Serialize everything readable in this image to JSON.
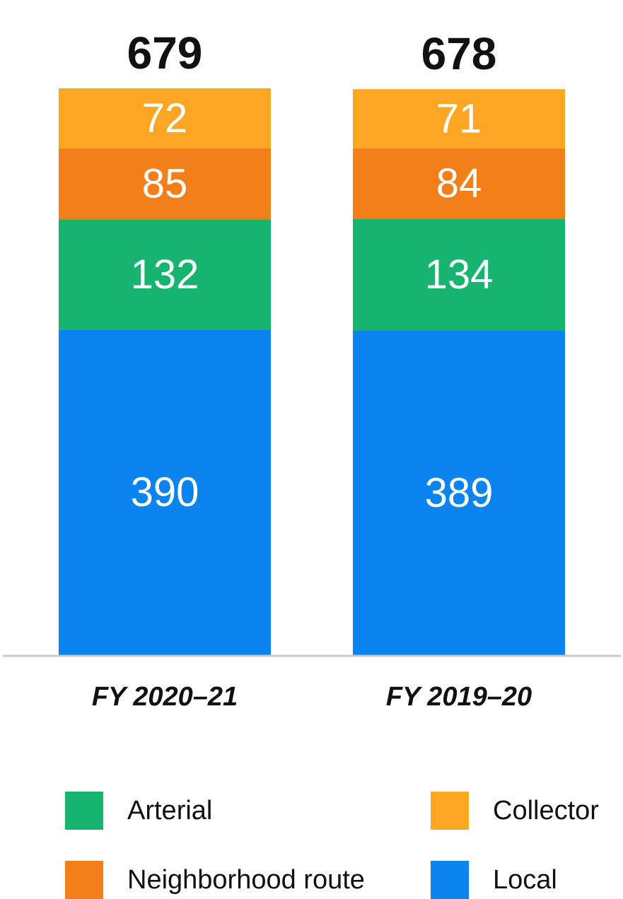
{
  "chart_data": {
    "type": "bar",
    "stacked": true,
    "categories": [
      "FY 2020–21",
      "FY 2019–20"
    ],
    "totals": [
      "679",
      "678"
    ],
    "series": [
      {
        "name": "Local",
        "color": "#0b84f0",
        "values": [
          390,
          389
        ]
      },
      {
        "name": "Arterial",
        "color": "#17b46f",
        "values": [
          132,
          134
        ]
      },
      {
        "name": "Neighborhood route",
        "color": "#f27f1a",
        "values": [
          85,
          84
        ]
      },
      {
        "name": "Collector",
        "color": "#fca623",
        "values": [
          72,
          71
        ]
      }
    ],
    "ylim": [
      0,
      679
    ],
    "grid": false,
    "legend_position": "bottom"
  },
  "legend": {
    "items": [
      {
        "label": "Arterial",
        "color": "#17b46f"
      },
      {
        "label": "Collector",
        "color": "#fca623"
      },
      {
        "label": "Neighborhood route",
        "color": "#f27f1a"
      },
      {
        "label": "Local",
        "color": "#0b84f0"
      }
    ]
  }
}
